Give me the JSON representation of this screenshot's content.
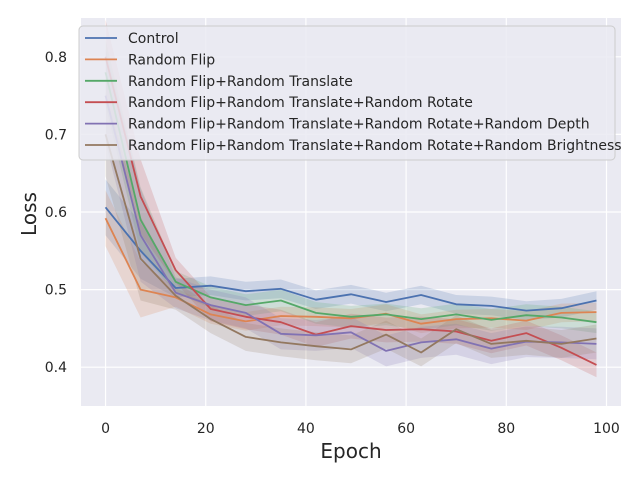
{
  "chart_data": {
    "type": "line",
    "title": "",
    "xlabel": "Epoch",
    "ylabel": "Loss",
    "xlim": [
      -4.9,
      102.9
    ],
    "ylim": [
      0.35,
      0.85
    ],
    "xticks": [
      0,
      20,
      40,
      60,
      80,
      100
    ],
    "yticks": [
      0.4,
      0.5,
      0.6,
      0.7,
      0.8
    ],
    "xtick_labels": [
      "0",
      "20",
      "40",
      "60",
      "80",
      "100"
    ],
    "ytick_labels": [
      "0.4",
      "0.5",
      "0.6",
      "0.7",
      "0.8"
    ],
    "grid": true,
    "background": "#eaeaf2",
    "legend_position": "upper left",
    "x": [
      0,
      7,
      14,
      21,
      28,
      35,
      42,
      49,
      56,
      63,
      70,
      77,
      84,
      91,
      98
    ],
    "series": [
      {
        "name": "Control",
        "color": "#4c72b0",
        "values": [
          0.606,
          0.55,
          0.502,
          0.505,
          0.498,
          0.501,
          0.487,
          0.494,
          0.484,
          0.493,
          0.481,
          0.479,
          0.473,
          0.476,
          0.486
        ],
        "band": 0.012
      },
      {
        "name": "Random Flip",
        "color": "#dd8452",
        "values": [
          0.592,
          0.5,
          0.49,
          0.468,
          0.459,
          0.466,
          0.465,
          0.463,
          0.469,
          0.456,
          0.462,
          0.463,
          0.46,
          0.47,
          0.471
        ],
        "band": 0.012
      },
      {
        "name": "Random Flip+Random Translate",
        "color": "#55a868",
        "values": [
          0.78,
          0.59,
          0.51,
          0.49,
          0.48,
          0.486,
          0.47,
          0.465,
          0.468,
          0.462,
          0.468,
          0.461,
          0.467,
          0.464,
          0.458
        ],
        "band": 0.014
      },
      {
        "name": "Random Flip+Random Translate+Random Rotate",
        "color": "#c44e52",
        "values": [
          0.8,
          0.62,
          0.525,
          0.475,
          0.465,
          0.458,
          0.442,
          0.453,
          0.448,
          0.449,
          0.446,
          0.434,
          0.444,
          0.425,
          0.403
        ],
        "band": 0.016
      },
      {
        "name": "Random Flip+Random Translate+Random Rotate+Random Depth",
        "color": "#8172b3",
        "values": [
          0.75,
          0.57,
          0.496,
          0.48,
          0.47,
          0.443,
          0.441,
          0.445,
          0.421,
          0.432,
          0.436,
          0.424,
          0.433,
          0.432,
          0.43
        ],
        "band": 0.02
      },
      {
        "name": "Random Flip+Random Translate+Random Rotate+Random Brightness",
        "color": "#937860",
        "values": [
          0.7,
          0.54,
          0.492,
          0.462,
          0.439,
          0.432,
          0.427,
          0.423,
          0.442,
          0.419,
          0.449,
          0.43,
          0.434,
          0.43,
          0.437
        ],
        "band": 0.018
      }
    ]
  }
}
